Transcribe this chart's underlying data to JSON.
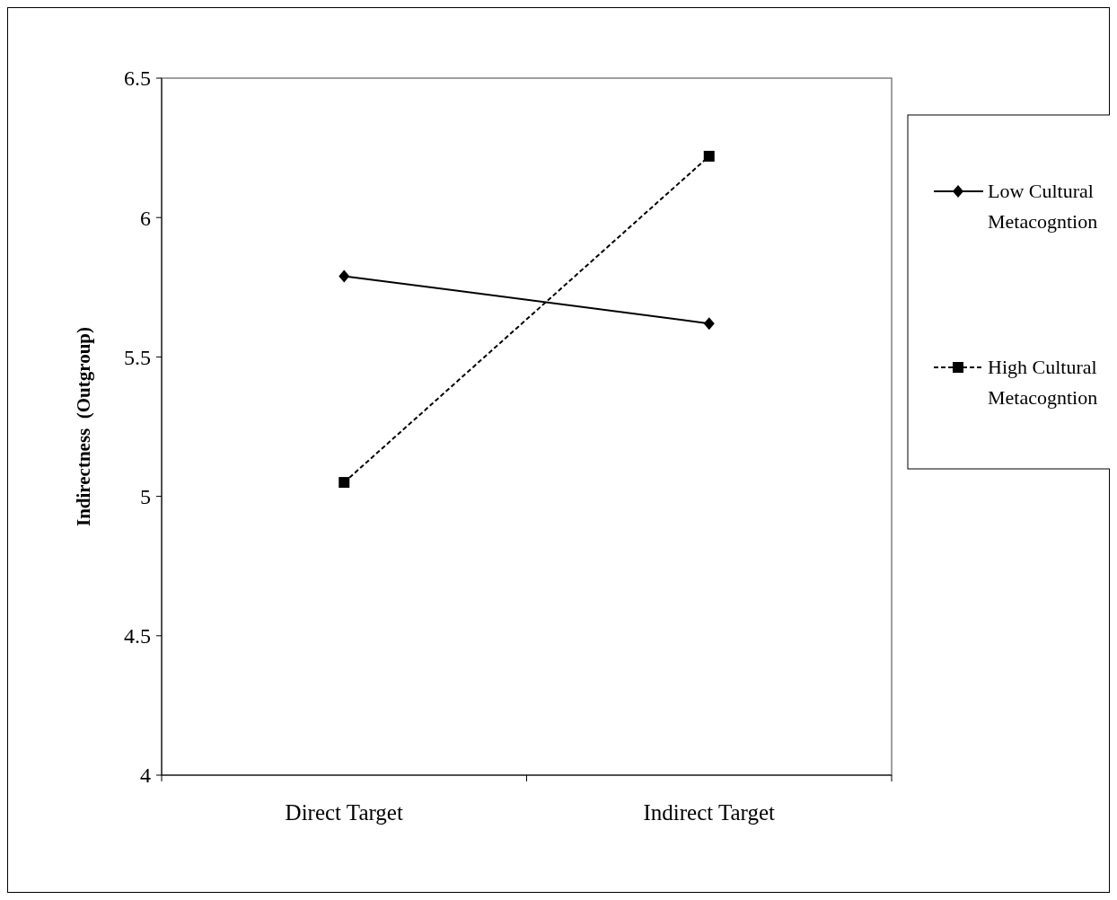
{
  "chart_data": {
    "type": "line",
    "ylabel": "Indirectness  (Outgroup)",
    "categories": [
      "Direct Target",
      "Indirect Target"
    ],
    "series": [
      {
        "name": "Low Cultural Metacogntion",
        "color": "#000000",
        "values": [
          5.79,
          5.62
        ],
        "marker": "diamond",
        "line_style": "solid"
      },
      {
        "name": "High Cultural Metacogntion",
        "color": "#000000",
        "values": [
          5.05,
          6.22
        ],
        "marker": "square",
        "line_style": "dashed"
      }
    ],
    "ylim": [
      4,
      6.5
    ],
    "yticks": [
      4,
      4.5,
      5,
      5.5,
      6,
      6.5
    ],
    "grid": false,
    "legend": "right"
  }
}
